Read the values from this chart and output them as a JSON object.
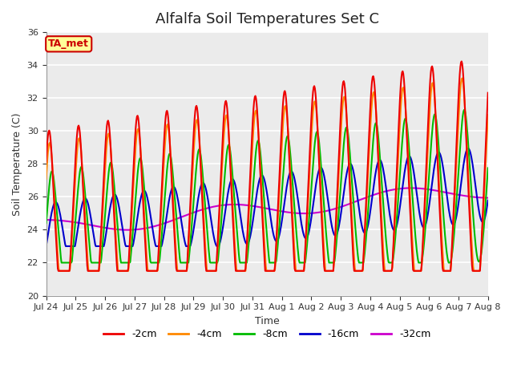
{
  "title": "Alfalfa Soil Temperatures Set C",
  "xlabel": "Time",
  "ylabel": "Soil Temperature (C)",
  "ylim": [
    20,
    36
  ],
  "yticks": [
    20,
    22,
    24,
    26,
    28,
    30,
    32,
    34,
    36
  ],
  "xtick_labels": [
    "Jul 24",
    "Jul 25",
    "Jul 26",
    "Jul 27",
    "Jul 28",
    "Jul 29",
    "Jul 30",
    "Jul 31",
    "Aug 1",
    "Aug 2",
    "Aug 3",
    "Aug 4",
    "Aug 5",
    "Aug 6",
    "Aug 7",
    "Aug 8"
  ],
  "colors": {
    "-2cm": "#EE0000",
    "-4cm": "#FF8800",
    "-8cm": "#00BB00",
    "-16cm": "#0000CC",
    "-32cm": "#CC00CC"
  },
  "annotation": "TA_met",
  "annotation_color": "#CC0000",
  "annotation_bg": "#FFFF99",
  "plot_bg": "#EBEBEB",
  "fig_background": "#FFFFFF",
  "legend_entries": [
    "-2cm",
    "-4cm",
    "-8cm",
    "-16cm",
    "-32cm"
  ],
  "linewidth": 1.5
}
